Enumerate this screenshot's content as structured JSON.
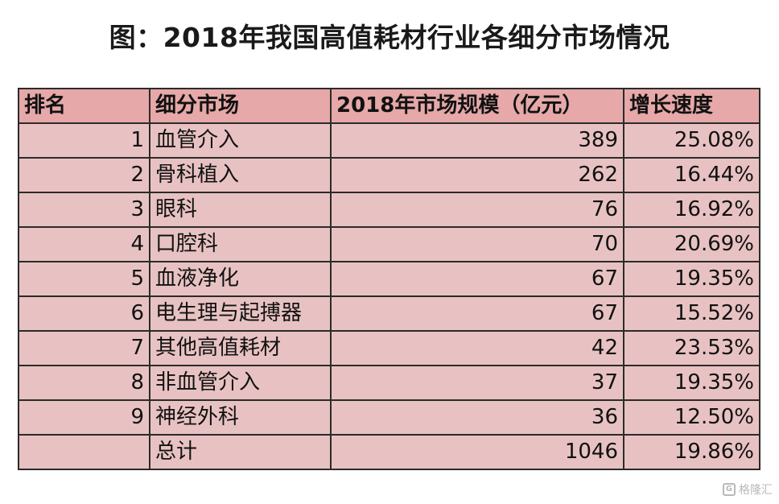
{
  "title": "图：2018年我国高值耗材行业各细分市场情况",
  "chart_data": {
    "type": "table",
    "title": "图：2018年我国高值耗材行业各细分市场情况",
    "columns": [
      "排名",
      "细分市场",
      "2018年市场规模（亿元）",
      "增长速度"
    ],
    "rows": [
      {
        "rank": "1",
        "segment": "血管介入",
        "size": "389",
        "growth": "25.08%"
      },
      {
        "rank": "2",
        "segment": "骨科植入",
        "size": "262",
        "growth": "16.44%"
      },
      {
        "rank": "3",
        "segment": "眼科",
        "size": "76",
        "growth": "16.92%"
      },
      {
        "rank": "4",
        "segment": "口腔科",
        "size": "70",
        "growth": "20.69%"
      },
      {
        "rank": "5",
        "segment": "血液净化",
        "size": "67",
        "growth": "19.35%"
      },
      {
        "rank": "6",
        "segment": "电生理与起搏器",
        "size": "67",
        "growth": "15.52%"
      },
      {
        "rank": "7",
        "segment": "其他高值耗材",
        "size": "42",
        "growth": "23.53%"
      },
      {
        "rank": "8",
        "segment": "非血管介入",
        "size": "37",
        "growth": "19.35%"
      },
      {
        "rank": "9",
        "segment": "神经外科",
        "size": "36",
        "growth": "12.50%"
      },
      {
        "rank": "",
        "segment": "总计",
        "size": "1046",
        "growth": "19.86%"
      }
    ],
    "colors": {
      "header_fill": "#e6a8a8",
      "cell_fill": "#e8c2c2",
      "border": "#2b2b2b"
    }
  },
  "watermark": {
    "icon": "gelonghui-logo-icon",
    "text": "格隆汇"
  }
}
